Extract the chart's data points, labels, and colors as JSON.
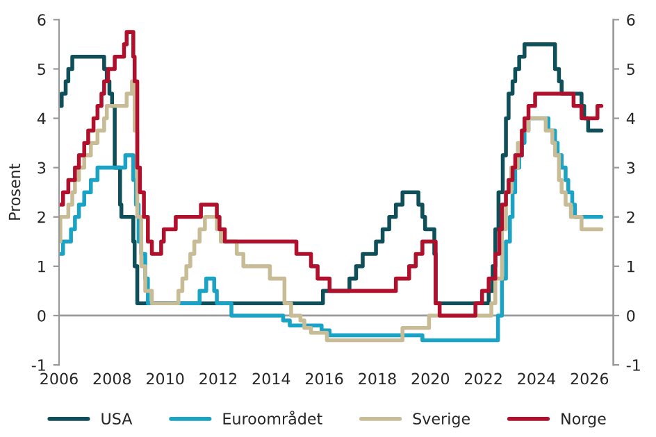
{
  "chart_data": {
    "type": "step",
    "ylabel": "Prosent",
    "xlim": [
      2006,
      2026.9
    ],
    "xticks": [
      2006,
      2008,
      2010,
      2012,
      2014,
      2016,
      2018,
      2020,
      2022,
      2024,
      2026
    ],
    "ylim": [
      -1,
      6
    ],
    "yticks": [
      -1,
      0,
      1,
      2,
      3,
      4,
      5,
      6
    ],
    "y2lim": [
      -1,
      6
    ],
    "y2ticks": [
      -1,
      0,
      1,
      2,
      3,
      4,
      5,
      6
    ],
    "grid": false,
    "legend": "bottom",
    "ref_lines": [
      {
        "axis": "y",
        "value": 0,
        "color": "#999999"
      }
    ],
    "line_style": "solid",
    "series": [
      {
        "name": "USA",
        "color": "#0e4f5a",
        "x": [
          2006.0,
          2006.1,
          2006.25,
          2006.35,
          2006.5,
          2007.7,
          2007.8,
          2007.9,
          2008.0,
          2008.1,
          2008.3,
          2008.35,
          2008.8,
          2008.85,
          2008.95,
          2015.95,
          2016.95,
          2017.2,
          2017.45,
          2017.95,
          2018.2,
          2018.45,
          2018.7,
          2018.95,
          2019.55,
          2019.7,
          2019.8,
          2020.15,
          2020.2,
          2022.2,
          2022.35,
          2022.45,
          2022.57,
          2022.73,
          2022.85,
          2022.95,
          2023.1,
          2023.2,
          2023.35,
          2023.55,
          2024.7,
          2024.85,
          2024.95,
          2025.7,
          2025.8,
          2025.95,
          2026.45
        ],
        "values": [
          4.25,
          4.5,
          4.75,
          5.0,
          5.25,
          5.0,
          4.75,
          4.5,
          4.25,
          3.0,
          2.25,
          2.0,
          1.5,
          1.0,
          0.25,
          0.5,
          0.75,
          1.0,
          1.25,
          1.5,
          1.75,
          2.0,
          2.25,
          2.5,
          2.25,
          2.0,
          1.75,
          1.25,
          0.25,
          0.5,
          1.0,
          1.75,
          2.5,
          3.25,
          4.0,
          4.5,
          4.75,
          5.0,
          5.25,
          5.5,
          5.0,
          4.75,
          4.5,
          4.25,
          4.0,
          3.75,
          3.75
        ]
      },
      {
        "name": "Euroområdet",
        "color": "#1aa3c4",
        "x": [
          2006.0,
          2006.15,
          2006.45,
          2006.6,
          2006.75,
          2006.95,
          2007.2,
          2007.45,
          2008.5,
          2008.8,
          2008.9,
          2009.0,
          2009.1,
          2009.25,
          2009.35,
          2011.3,
          2011.55,
          2011.85,
          2011.95,
          2012.5,
          2014.45,
          2014.7,
          2015.9,
          2016.2,
          2019.7,
          2022.55,
          2022.7,
          2022.85,
          2023.0,
          2023.1,
          2023.2,
          2023.35,
          2023.45,
          2023.55,
          2023.7,
          2024.45,
          2024.7,
          2024.8,
          2024.95,
          2025.1,
          2025.2,
          2025.35,
          2025.45,
          2026.45
        ],
        "values": [
          1.25,
          1.5,
          1.75,
          2.0,
          2.25,
          2.5,
          2.75,
          3.0,
          3.25,
          2.75,
          2.25,
          1.5,
          1.25,
          0.75,
          0.25,
          0.5,
          0.75,
          0.5,
          0.25,
          0.0,
          -0.1,
          -0.2,
          -0.3,
          -0.4,
          -0.5,
          0.0,
          0.75,
          1.5,
          2.0,
          2.5,
          3.0,
          3.25,
          3.5,
          3.75,
          4.0,
          3.75,
          3.5,
          3.25,
          3.0,
          2.75,
          2.5,
          2.25,
          2.0,
          2.0
        ]
      },
      {
        "name": "Sverige",
        "color": "#c8bc96",
        "x": [
          2006.0,
          2006.05,
          2006.35,
          2006.5,
          2006.6,
          2006.75,
          2006.95,
          2007.2,
          2007.45,
          2007.7,
          2007.8,
          2008.55,
          2008.75,
          2008.85,
          2008.95,
          2009.1,
          2009.25,
          2009.5,
          2010.5,
          2010.65,
          2010.8,
          2010.95,
          2011.1,
          2011.3,
          2011.5,
          2011.95,
          2012.1,
          2012.7,
          2012.95,
          2013.95,
          2014.5,
          2014.75,
          2015.1,
          2015.25,
          2015.5,
          2016.1,
          2018.95,
          2019.95,
          2022.3,
          2022.45,
          2022.7,
          2022.85,
          2023.05,
          2023.3,
          2023.45,
          2023.7,
          2024.35,
          2024.6,
          2024.7,
          2024.85,
          2024.95,
          2025.1,
          2025.3,
          2025.7,
          2026.45
        ],
        "values": [
          1.5,
          2.0,
          2.25,
          2.5,
          2.75,
          3.0,
          3.25,
          3.5,
          3.75,
          4.0,
          4.25,
          4.5,
          4.75,
          3.75,
          2.0,
          1.0,
          0.5,
          0.25,
          0.5,
          0.75,
          1.0,
          1.25,
          1.5,
          1.75,
          2.0,
          1.75,
          1.5,
          1.25,
          1.0,
          0.75,
          0.25,
          0.0,
          -0.1,
          -0.25,
          -0.35,
          -0.5,
          -0.25,
          0.0,
          0.25,
          0.75,
          1.75,
          2.5,
          3.0,
          3.5,
          3.75,
          4.0,
          3.75,
          3.5,
          3.25,
          2.75,
          2.5,
          2.25,
          2.0,
          1.75,
          1.75
        ]
      },
      {
        "name": "Norge",
        "color": "#b0102b",
        "x": [
          2006.0,
          2006.15,
          2006.35,
          2006.6,
          2006.75,
          2006.95,
          2007.1,
          2007.3,
          2007.45,
          2007.6,
          2007.7,
          2007.85,
          2008.1,
          2008.45,
          2008.55,
          2008.8,
          2008.85,
          2008.95,
          2009.05,
          2009.2,
          2009.35,
          2009.5,
          2009.85,
          2009.95,
          2010.4,
          2011.35,
          2011.95,
          2012.05,
          2012.25,
          2014.95,
          2015.5,
          2015.75,
          2016.2,
          2018.7,
          2019.2,
          2019.45,
          2019.7,
          2020.2,
          2020.35,
          2021.7,
          2021.95,
          2022.2,
          2022.45,
          2022.6,
          2022.7,
          2022.85,
          2022.95,
          2023.1,
          2023.2,
          2023.45,
          2023.55,
          2023.7,
          2023.95,
          2025.4,
          2025.7,
          2026.3,
          2026.45
        ],
        "values": [
          2.25,
          2.5,
          2.75,
          3.0,
          3.25,
          3.5,
          3.75,
          4.0,
          4.25,
          4.5,
          4.75,
          5.0,
          5.25,
          5.5,
          5.75,
          5.25,
          4.75,
          3.0,
          2.5,
          2.0,
          1.5,
          1.25,
          1.5,
          1.75,
          2.0,
          2.25,
          2.0,
          1.75,
          1.5,
          1.25,
          1.0,
          0.75,
          0.5,
          0.75,
          1.0,
          1.25,
          1.5,
          0.25,
          0.0,
          0.25,
          0.5,
          0.75,
          1.25,
          1.75,
          2.25,
          2.5,
          2.75,
          3.0,
          3.25,
          3.75,
          4.0,
          4.25,
          4.5,
          4.25,
          4.0,
          4.25,
          4.25
        ]
      }
    ]
  }
}
